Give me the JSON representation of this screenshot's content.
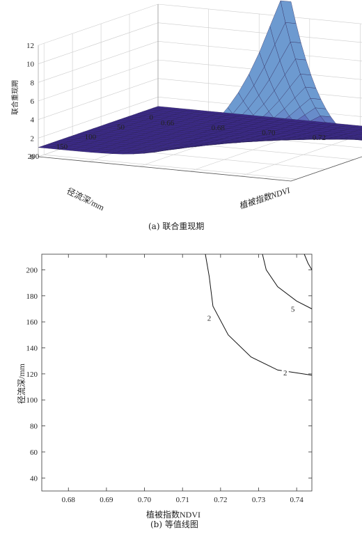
{
  "chart_data": [
    {
      "type": "surface",
      "caption": "(a) 联合重现期",
      "zlabel": "联合重现期",
      "xlabel": "植被指数NDVI",
      "ylabel": "径流深/mm",
      "x_ticks": [
        "0.66",
        "0.68",
        "0.70",
        "0.72",
        "0.74",
        "0.76"
      ],
      "y_ticks": [
        "0",
        "50",
        "100",
        "150",
        "200"
      ],
      "z_ticks": [
        "0",
        "2",
        "4",
        "6",
        "8",
        "10",
        "12"
      ],
      "xlim": [
        0.66,
        0.76
      ],
      "ylim": [
        0,
        210
      ],
      "zlim": [
        0,
        12
      ],
      "peak": {
        "x": 0.745,
        "y": 210,
        "z": 12
      },
      "min_z": 1.0,
      "colormap": [
        "#3b2a86",
        "#4a3fa4",
        "#5a63b8",
        "#6d9ad0"
      ],
      "grid": true
    },
    {
      "type": "contour",
      "caption": "(b) 等值线图",
      "xlabel": "植被指数NDVI",
      "ylabel": "径流深/mm",
      "x_ticks": [
        "0.68",
        "0.69",
        "0.70",
        "0.71",
        "0.72",
        "0.73",
        "0.74"
      ],
      "y_ticks": [
        "40",
        "60",
        "80",
        "100",
        "120",
        "140",
        "160",
        "180",
        "200"
      ],
      "xlim": [
        0.673,
        0.744
      ],
      "ylim": [
        30,
        212
      ],
      "levels": [
        {
          "label": "2",
          "points": [
            [
              0.716,
              212
            ],
            [
              0.717,
              195
            ],
            [
              0.718,
              172
            ],
            [
              0.722,
              150
            ],
            [
              0.728,
              133
            ],
            [
              0.735,
              123
            ],
            [
              0.744,
              119
            ]
          ]
        },
        {
          "label": "5",
          "points": [
            [
              0.731,
              212
            ],
            [
              0.732,
              200
            ],
            [
              0.735,
              187
            ],
            [
              0.74,
              176
            ],
            [
              0.744,
              170
            ]
          ]
        },
        {
          "label": "",
          "points": [
            [
              0.742,
              212
            ],
            [
              0.743,
              205
            ],
            [
              0.744,
              200
            ]
          ]
        }
      ],
      "level_labels": [
        {
          "text": "2",
          "x": 0.717,
          "y": 163
        },
        {
          "text": "5",
          "x": 0.739,
          "y": 170
        },
        {
          "text": "2",
          "x": 0.737,
          "y": 121
        }
      ]
    }
  ]
}
